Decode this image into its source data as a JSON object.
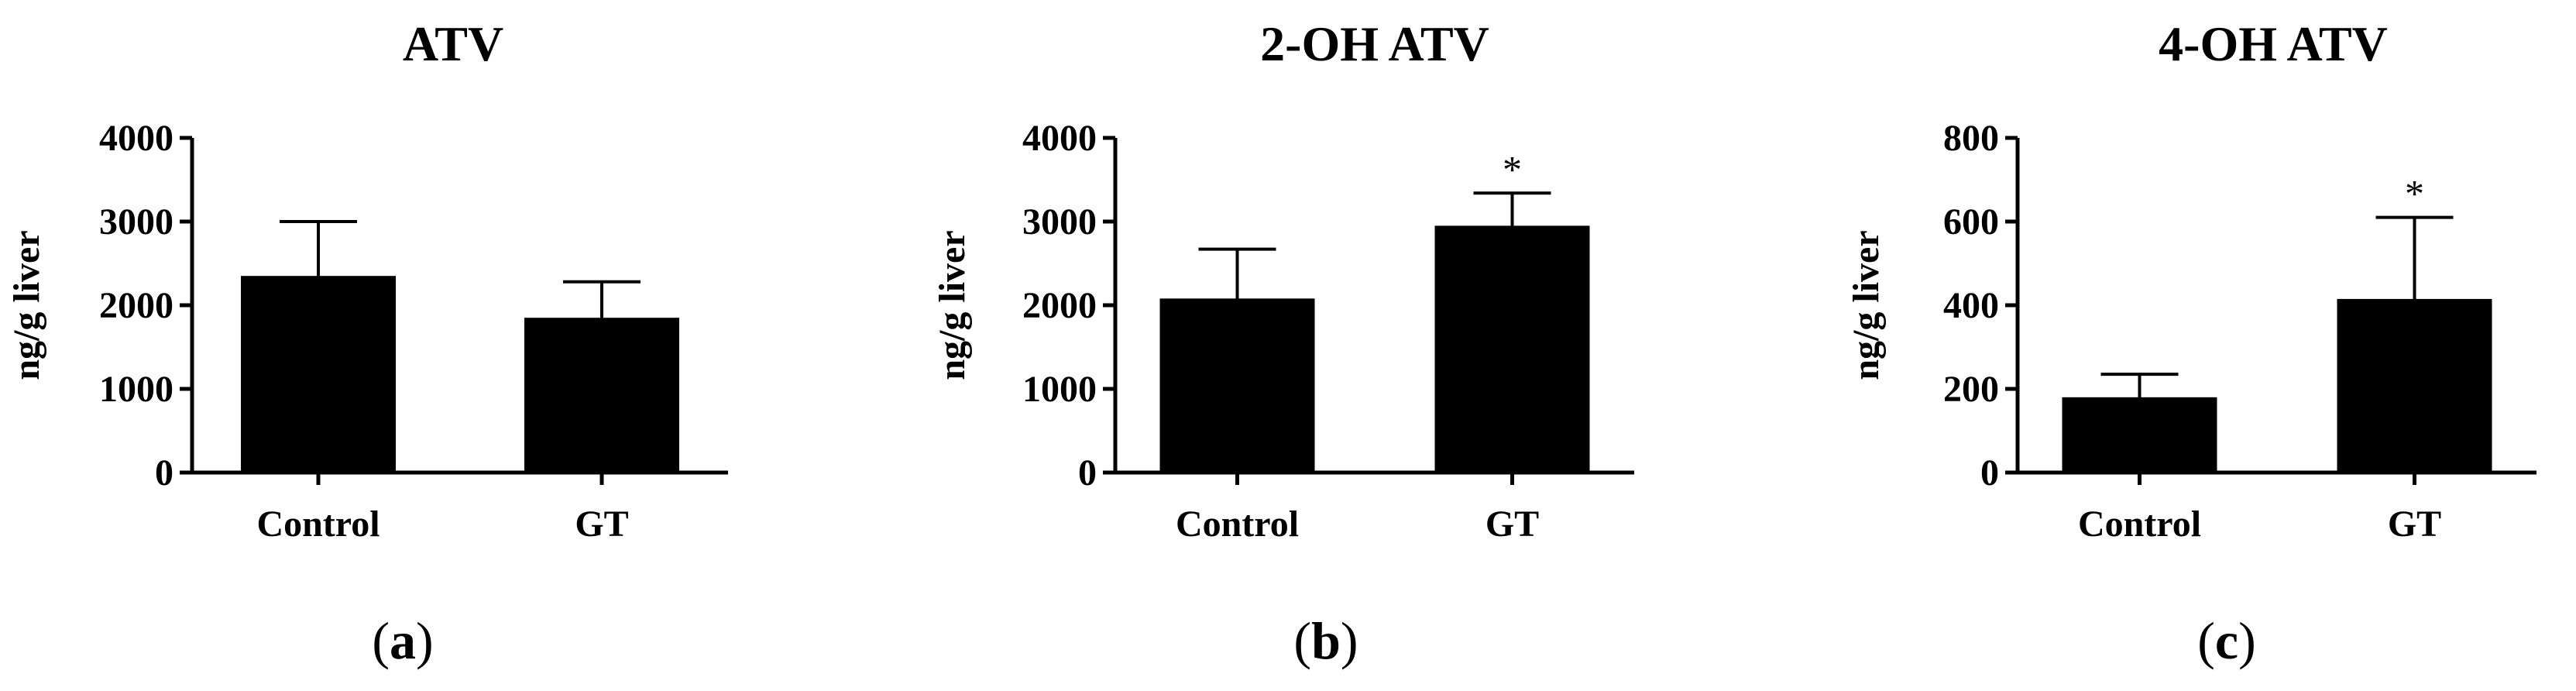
{
  "chart_data": [
    {
      "type": "bar",
      "panel_label": "a",
      "title": "ATV",
      "xlabel": "",
      "ylabel": "ng/g liver",
      "categories": [
        "Control",
        "GT"
      ],
      "values": [
        2350,
        1850
      ],
      "errors": [
        650,
        430
      ],
      "significance": [
        "",
        ""
      ],
      "ylim": [
        0,
        4000
      ],
      "yticks": [
        0,
        1000,
        2000,
        3000,
        4000
      ]
    },
    {
      "type": "bar",
      "panel_label": "b",
      "title": "2-OH ATV",
      "xlabel": "",
      "ylabel": "ng/g liver",
      "categories": [
        "Control",
        "GT"
      ],
      "values": [
        2080,
        2950
      ],
      "errors": [
        590,
        390
      ],
      "significance": [
        "",
        "*"
      ],
      "ylim": [
        0,
        4000
      ],
      "yticks": [
        0,
        1000,
        2000,
        3000,
        4000
      ]
    },
    {
      "type": "bar",
      "panel_label": "c",
      "title": "4-OH ATV",
      "xlabel": "",
      "ylabel": "ng/g liver",
      "categories": [
        "Control",
        "GT"
      ],
      "values": [
        180,
        415
      ],
      "errors": [
        55,
        195
      ],
      "significance": [
        "",
        "*"
      ],
      "ylim": [
        0,
        800
      ],
      "yticks": [
        0,
        200,
        400,
        600,
        800
      ]
    }
  ]
}
